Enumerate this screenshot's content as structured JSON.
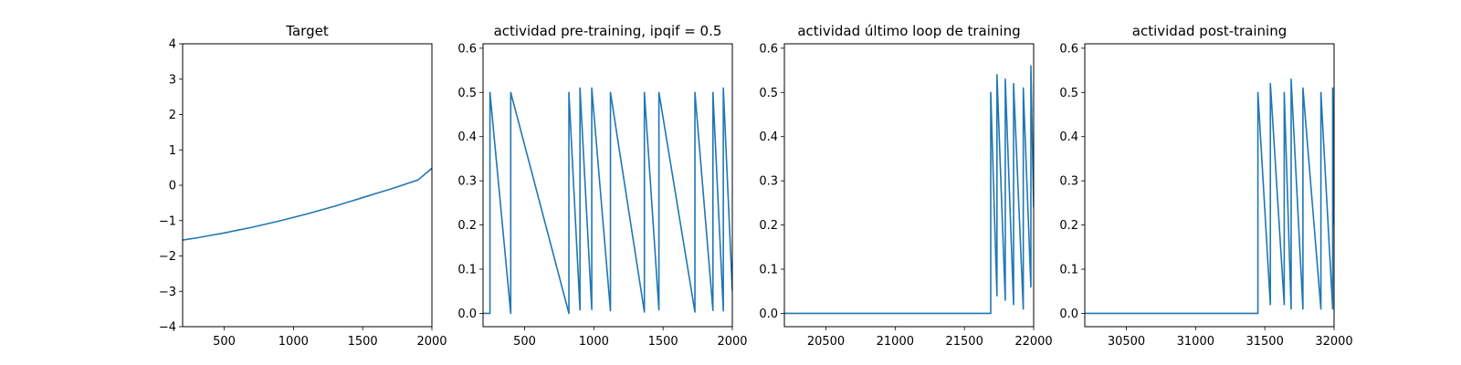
{
  "line_color": "#1f77b4",
  "chart_data": [
    {
      "type": "line",
      "title": "Target",
      "xlim": [
        200,
        2000
      ],
      "ylim": [
        -4,
        4
      ],
      "xticks": [
        500,
        1000,
        1500,
        2000
      ],
      "yticks": [
        -4,
        -3,
        -2,
        -1,
        0,
        1,
        2,
        3,
        4
      ],
      "xtick_labels": [
        "500",
        "1000",
        "1500",
        "2000"
      ],
      "ytick_labels": [
        "−4",
        "−3",
        "−2",
        "−1",
        "0",
        "1",
        "2",
        "3",
        "4"
      ],
      "series": [
        {
          "x": [
            200,
            300,
            400,
            500,
            600,
            700,
            800,
            900,
            1000,
            1100,
            1200,
            1300,
            1400,
            1500,
            1600,
            1700,
            1800,
            1900,
            2000
          ],
          "y": [
            -1.55,
            -1.49,
            -1.42,
            -1.35,
            -1.27,
            -1.19,
            -1.1,
            -1.01,
            -0.91,
            -0.81,
            -0.7,
            -0.59,
            -0.47,
            -0.35,
            -0.23,
            -0.11,
            0.02,
            0.15,
            0.48
          ]
        }
      ]
    },
    {
      "type": "line",
      "title": "actividad pre-training, ipqif = 0.5",
      "xlim": [
        200,
        2000
      ],
      "ylim": [
        -0.03,
        0.61
      ],
      "xticks": [
        500,
        1000,
        1500,
        2000
      ],
      "yticks": [
        0.0,
        0.1,
        0.2,
        0.3,
        0.4,
        0.5,
        0.6
      ],
      "xtick_labels": [
        "500",
        "1000",
        "1500",
        "2000"
      ],
      "ytick_labels": [
        "0.0",
        "0.1",
        "0.2",
        "0.3",
        "0.4",
        "0.5",
        "0.6"
      ],
      "series": [
        {
          "x": [
            200,
            250,
            250,
            400,
            400,
            820,
            820,
            900,
            900,
            985,
            985,
            1120,
            1120,
            1365,
            1365,
            1470,
            1470,
            1730,
            1730,
            1860,
            1860,
            1935,
            1935,
            2000
          ],
          "y": [
            0,
            0,
            0.5,
            0,
            0.5,
            0,
            0.5,
            0.008,
            0.51,
            0.009,
            0.51,
            0.006,
            0.5,
            0.003,
            0.5,
            0.008,
            0.5,
            0.003,
            0.5,
            0.007,
            0.5,
            0.006,
            0.51,
            0.05
          ]
        }
      ]
    },
    {
      "type": "line",
      "title": "actividad último loop de training",
      "xlim": [
        20200,
        22000
      ],
      "ylim": [
        -0.03,
        0.61
      ],
      "xticks": [
        20500,
        21000,
        21500,
        22000
      ],
      "yticks": [
        0.0,
        0.1,
        0.2,
        0.3,
        0.4,
        0.5,
        0.6
      ],
      "xtick_labels": [
        "20500",
        "21000",
        "21500",
        "22000"
      ],
      "ytick_labels": [
        "0.0",
        "0.1",
        "0.2",
        "0.3",
        "0.4",
        "0.5",
        "0.6"
      ],
      "series": [
        {
          "x": [
            20200,
            21690,
            21690,
            21735,
            21735,
            21795,
            21795,
            21855,
            21855,
            21925,
            21925,
            21980,
            21980,
            22000
          ],
          "y": [
            0,
            0,
            0.5,
            0.04,
            0.54,
            0.03,
            0.53,
            0.02,
            0.52,
            0.01,
            0.51,
            0.06,
            0.56,
            0.24
          ]
        }
      ]
    },
    {
      "type": "line",
      "title": "actividad post-training",
      "xlim": [
        30200,
        32000
      ],
      "ylim": [
        -0.03,
        0.61
      ],
      "xticks": [
        30500,
        31000,
        31500,
        32000
      ],
      "yticks": [
        0.0,
        0.1,
        0.2,
        0.3,
        0.4,
        0.5,
        0.6
      ],
      "xtick_labels": [
        "30500",
        "31000",
        "31500",
        "32000"
      ],
      "ytick_labels": [
        "0.0",
        "0.1",
        "0.2",
        "0.3",
        "0.4",
        "0.5",
        "0.6"
      ],
      "series": [
        {
          "x": [
            30200,
            31450,
            31450,
            31540,
            31540,
            31640,
            31640,
            31690,
            31690,
            31775,
            31775,
            31905,
            31905,
            31990,
            31990,
            32000
          ],
          "y": [
            0,
            0,
            0.5,
            0.02,
            0.52,
            0.02,
            0.5,
            0.01,
            0.53,
            0.01,
            0.51,
            0.01,
            0.5,
            0.01,
            0.51,
            0.2
          ]
        }
      ]
    }
  ]
}
